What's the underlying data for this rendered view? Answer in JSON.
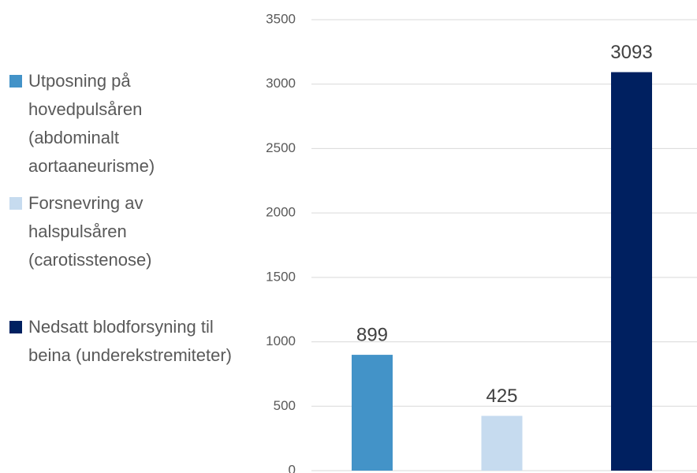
{
  "chart_data": {
    "type": "bar",
    "categories": [
      null
    ],
    "series": [
      {
        "name": "Utposning på hovedpulsåren (abdominalt aortaaneurisme)",
        "color": "#4393c8",
        "values": [
          899
        ]
      },
      {
        "name": "Forsnevring av halspulsåren (carotisstenose)",
        "color": "#c6dbef",
        "values": [
          425
        ]
      },
      {
        "name": "Nedsatt blodforsyning til beina (underekstremiteter)",
        "color": "#002060",
        "values": [
          3093
        ]
      }
    ],
    "ylim": [
      0,
      3500
    ],
    "yticks": [
      0,
      500,
      1000,
      1500,
      2000,
      2500,
      3000,
      3500
    ],
    "grid": true,
    "legend": "left",
    "data_labels": true
  }
}
